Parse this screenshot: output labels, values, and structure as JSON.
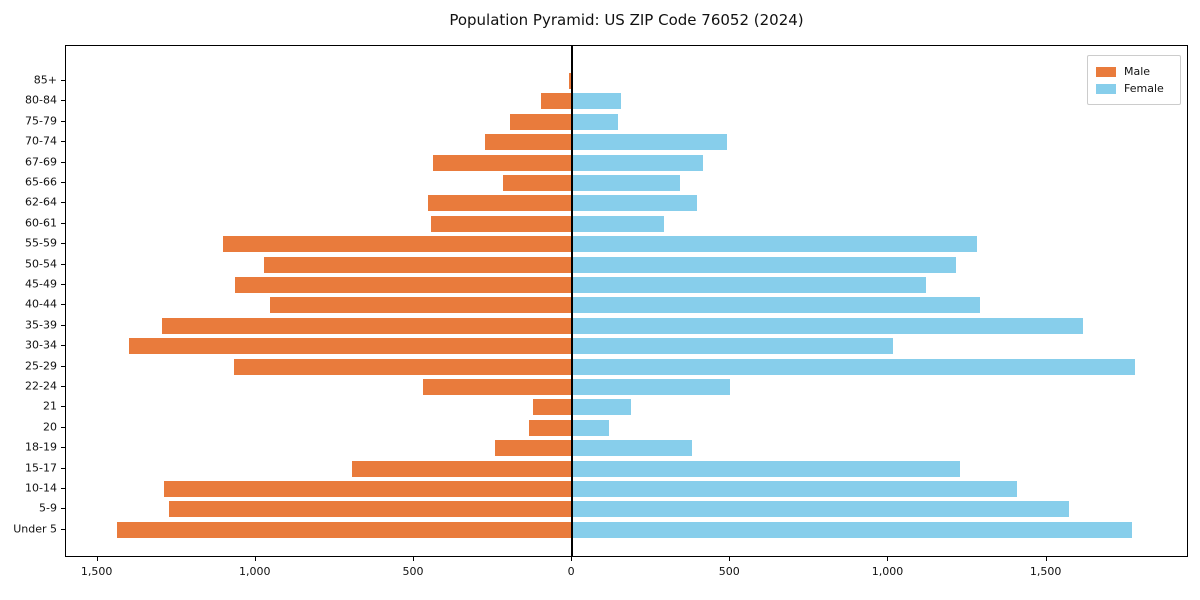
{
  "title": "Population Pyramid: US ZIP Code 76052 (2024)",
  "legend": {
    "male_label": "Male",
    "female_label": "Female"
  },
  "colors": {
    "male": "#e97b3c",
    "female": "#87ceeb",
    "axis": "#000000",
    "zero_line": "#000000",
    "legend_border": "#cccccc"
  },
  "chart_data": {
    "type": "bar",
    "subtype": "population-pyramid",
    "orientation": "horizontal",
    "title": "Population Pyramid: US ZIP Code 76052 (2024)",
    "categories_top_to_bottom": [
      "85+",
      "80-84",
      "75-79",
      "70-74",
      "67-69",
      "65-66",
      "62-64",
      "60-61",
      "55-59",
      "50-54",
      "45-49",
      "40-44",
      "35-39",
      "30-34",
      "25-29",
      "22-24",
      "21",
      "20",
      "18-19",
      "15-17",
      "10-14",
      "5-9",
      "Under 5"
    ],
    "series": [
      {
        "name": "Male",
        "side": "left",
        "color": "#e97b3c",
        "values": [
          10,
          100,
          195,
          275,
          440,
          220,
          455,
          445,
          1105,
          975,
          1065,
          955,
          1295,
          1400,
          1070,
          470,
          125,
          135,
          245,
          695,
          1290,
          1275,
          1440
        ]
      },
      {
        "name": "Female",
        "side": "right",
        "color": "#87ceeb",
        "values": [
          0,
          155,
          145,
          490,
          415,
          340,
          395,
          290,
          1280,
          1215,
          1120,
          1290,
          1615,
          1015,
          1780,
          500,
          185,
          115,
          380,
          1225,
          1405,
          1570,
          1770
        ]
      }
    ],
    "x_axis": {
      "tick_values": [
        -1500,
        -1000,
        -500,
        0,
        500,
        1000,
        1500
      ],
      "tick_labels": [
        "1,500",
        "1,000",
        "500",
        "0",
        "500",
        "1,000",
        "1,500"
      ],
      "xlim": [
        -1600,
        1950
      ]
    },
    "legend_position": "upper right",
    "grid": false
  }
}
